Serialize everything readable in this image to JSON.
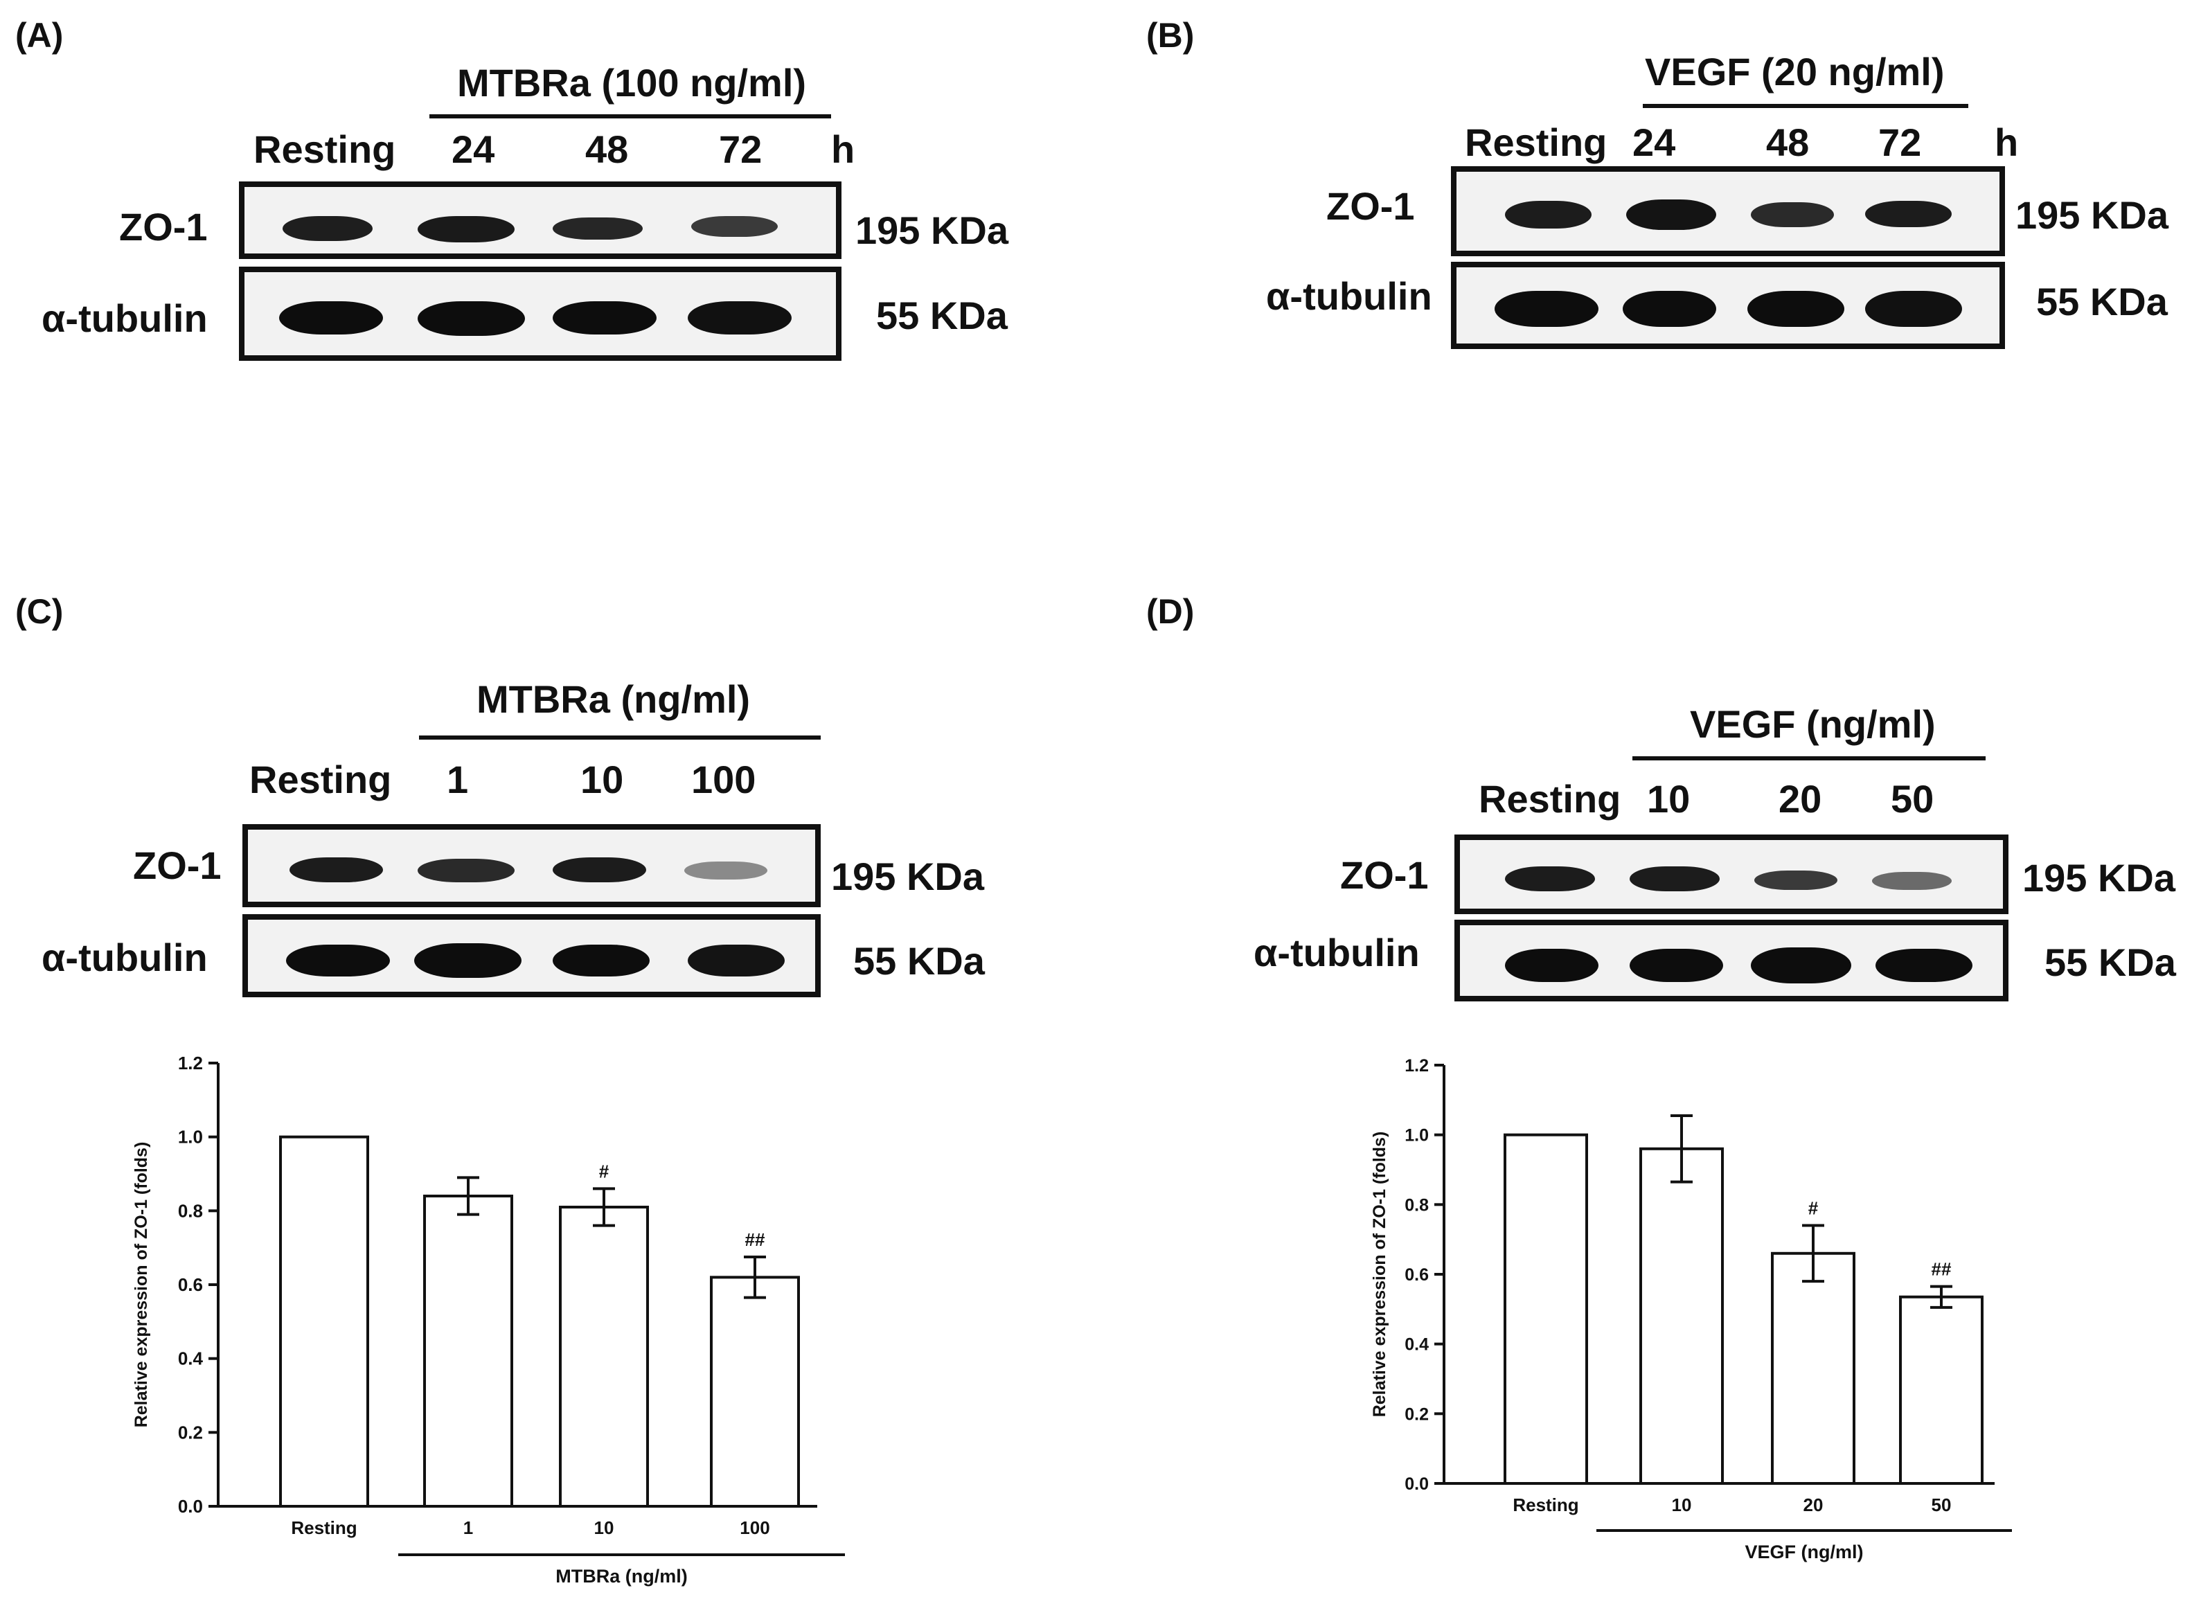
{
  "panelA": {
    "label": "(A)",
    "treatment": "MTBRa (100 ng/ml)",
    "lanes": [
      "Resting",
      "24",
      "48",
      "72"
    ],
    "unit": "h",
    "rows": [
      {
        "name": "ZO-1",
        "kda": "195 KDa"
      },
      {
        "name": "α-tubulin",
        "kda": "55 KDa"
      }
    ]
  },
  "panelB": {
    "label": "(B)",
    "treatment": "VEGF (20 ng/ml)",
    "lanes": [
      "Resting",
      "24",
      "48",
      "72"
    ],
    "unit": "h",
    "rows": [
      {
        "name": "ZO-1",
        "kda": "195 KDa"
      },
      {
        "name": "α-tubulin",
        "kda": "55 KDa"
      }
    ]
  },
  "panelC": {
    "label": "(C)",
    "treatment": "MTBRa (ng/ml)",
    "lanes": [
      "Resting",
      "1",
      "10",
      "100"
    ],
    "rows": [
      {
        "name": "ZO-1",
        "kda": "195 KDa"
      },
      {
        "name": "α-tubulin",
        "kda": "55 KDa"
      }
    ]
  },
  "panelD": {
    "label": "(D)",
    "treatment": "VEGF (ng/ml)",
    "lanes": [
      "Resting",
      "10",
      "20",
      "50"
    ],
    "rows": [
      {
        "name": "ZO-1",
        "kda": "195 KDa"
      },
      {
        "name": "α-tubulin",
        "kda": "55 KDa"
      }
    ]
  },
  "chart_data": [
    {
      "type": "bar",
      "categories": [
        "Resting",
        "1",
        "10",
        "100"
      ],
      "values": [
        1.0,
        0.84,
        0.81,
        0.62
      ],
      "errors": [
        0,
        0.05,
        0.05,
        0.055
      ],
      "significance": [
        "",
        "",
        "#",
        "##"
      ],
      "xlabel": "MTBRa (ng/ml)",
      "ylabel": "Relative expression of ZO-1 (folds)",
      "ylim": [
        0,
        1.2
      ],
      "yticks": [
        "0.0",
        "0.2",
        "0.4",
        "0.6",
        "0.8",
        "1.0",
        "1.2"
      ],
      "grid": false
    },
    {
      "type": "bar",
      "categories": [
        "Resting",
        "10",
        "20",
        "50"
      ],
      "values": [
        1.0,
        0.96,
        0.66,
        0.535
      ],
      "errors": [
        0,
        0.095,
        0.08,
        0.03
      ],
      "significance": [
        "",
        "",
        "#",
        "##"
      ],
      "xlabel": "VEGF (ng/ml)",
      "ylabel": "Relative expression of ZO-1 (folds)",
      "ylim": [
        0,
        1.2
      ],
      "yticks": [
        "0.0",
        "0.2",
        "0.4",
        "0.6",
        "0.8",
        "1.0",
        "1.2"
      ],
      "grid": false
    }
  ]
}
